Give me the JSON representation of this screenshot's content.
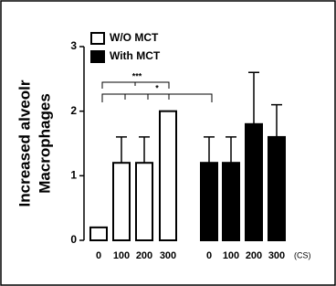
{
  "chart_data": {
    "type": "bar",
    "y_label_lines": [
      "Increased alveolr",
      "Macrophages"
    ],
    "categories": [
      "0",
      "100",
      "200",
      "300",
      "0",
      "100",
      "200",
      "300"
    ],
    "x_unit_label": "(CS)",
    "series": [
      {
        "name": "W/O MCT",
        "color": "#ffffff",
        "values": [
          0.2,
          1.2,
          1.2,
          2.0,
          null,
          null,
          null,
          null
        ],
        "errors": [
          0,
          0.4,
          0.4,
          0,
          null,
          null,
          null,
          null
        ]
      },
      {
        "name": "With MCT",
        "color": "#000000",
        "values": [
          null,
          null,
          null,
          null,
          1.2,
          1.2,
          1.8,
          1.6
        ],
        "errors": [
          null,
          null,
          null,
          null,
          0.4,
          0.4,
          0.8,
          0.5
        ]
      }
    ],
    "ylim": [
      0,
      3
    ],
    "yticks": [
      0,
      1,
      2,
      3
    ],
    "annotations": [
      "***",
      "*"
    ]
  }
}
